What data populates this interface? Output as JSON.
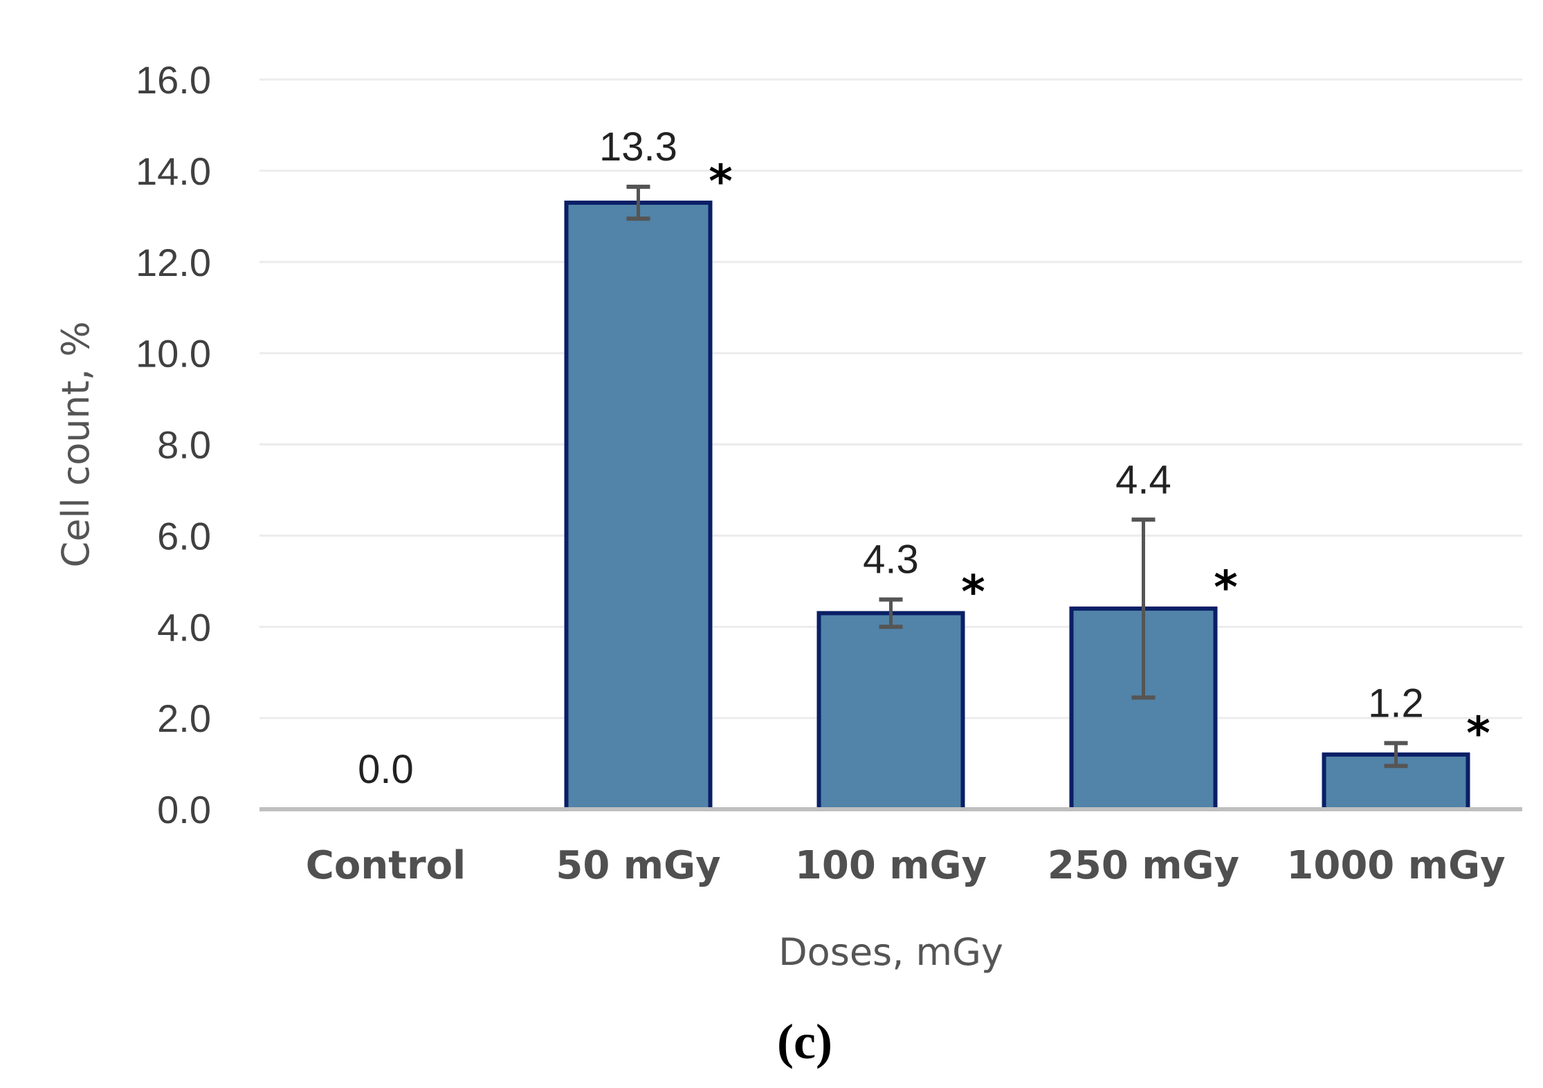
{
  "chart_data": {
    "type": "bar",
    "title": "",
    "xlabel": "Doses, mGy",
    "ylabel": "Cell count, %",
    "categories": [
      "Control",
      "50 mGy",
      "100 mGy",
      "250 mGy",
      "1000 mGy"
    ],
    "values": [
      0.0,
      13.3,
      4.3,
      4.4,
      1.2
    ],
    "data_labels": [
      "0.0",
      "13.3",
      "4.3",
      "4.4",
      "1.2"
    ],
    "error_bars": [
      0.0,
      0.35,
      0.3,
      1.95,
      0.25
    ],
    "significance_markers": [
      "",
      "*",
      "*",
      "*",
      "*"
    ],
    "ylim": [
      0,
      16
    ],
    "yticks": [
      0,
      2,
      4,
      6,
      8,
      10,
      12,
      14,
      16
    ],
    "ytick_labels": [
      "0.0",
      "2.0",
      "4.0",
      "6.0",
      "8.0",
      "10.0",
      "12.0",
      "14.0",
      "16.0"
    ],
    "grid": true,
    "bar_color": "#5283a8",
    "bar_edge_color": "#0a1f66",
    "error_bar_color": "#555555"
  },
  "caption": "(c)"
}
